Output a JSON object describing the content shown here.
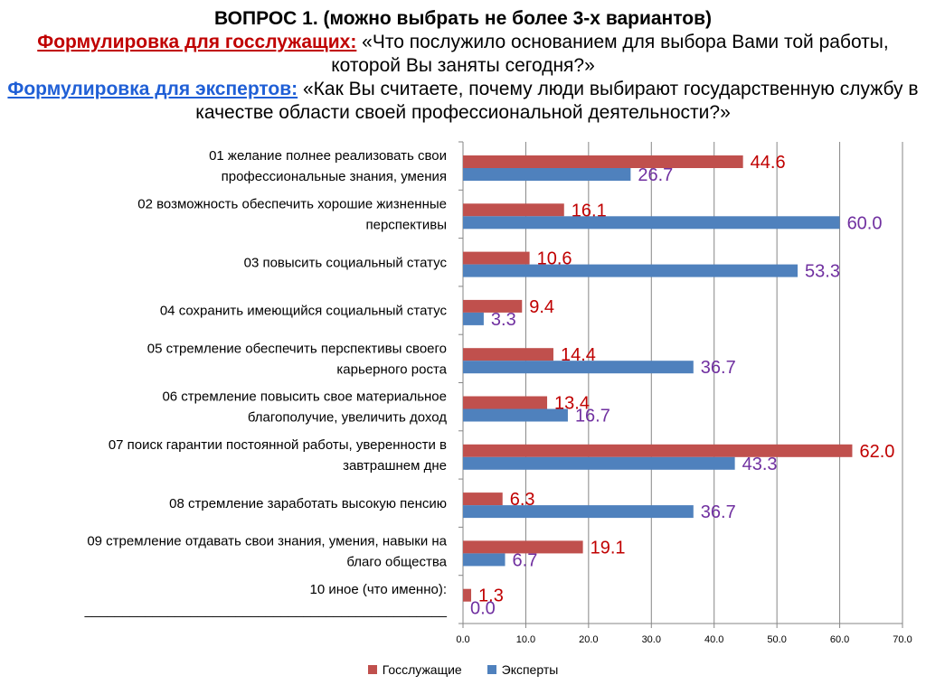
{
  "header": {
    "question": "ВОПРОС 1. (можно выбрать не более 3-х вариантов)",
    "label_civil": "Формулировка для госслужащих:",
    "text_civil": " «Что послужило основанием для выбора Вами той работы, которой Вы заняты сегодня?»",
    "label_expert": "Формулировка для экспертов:",
    "text_expert": " «Как Вы считаете, почему люди выбирают государственную службу в качестве области своей профессиональной деятельности?»"
  },
  "colors": {
    "civil": "#c0504d",
    "expert": "#4f81bd",
    "civil_label": "#c00000",
    "expert_label": "#7030a0"
  },
  "chart_data": {
    "type": "bar",
    "orientation": "horizontal",
    "categories": [
      [
        "01  желание полнее реализовать свои",
        "профессиональные знания, умения"
      ],
      [
        "02  возможность обеспечить хорошие жизненные",
        "перспективы"
      ],
      [
        "03  повысить социальный статус"
      ],
      [
        "04  сохранить имеющийся социальный статус"
      ],
      [
        "05  стремление обеспечить перспективы своего",
        "карьерного роста"
      ],
      [
        "06  стремление повысить свое материальное",
        "благополучие, увеличить доход"
      ],
      [
        "07  поиск гарантии постоянной работы, уверенности в",
        "завтрашнем дне"
      ],
      [
        "08  стремление заработать высокую пенсию"
      ],
      [
        "09  стремление отдавать свои знания, умения, навыки на",
        "благо общества"
      ],
      [
        "10  иное (что именно):",
        "________________________________________________"
      ]
    ],
    "series": [
      {
        "name": "Госслужащие",
        "values": [
          44.6,
          16.1,
          10.6,
          9.4,
          14.4,
          13.4,
          62.0,
          6.3,
          19.1,
          1.3
        ]
      },
      {
        "name": "Эксперты",
        "values": [
          26.7,
          60.0,
          53.3,
          3.3,
          36.7,
          16.7,
          43.3,
          36.7,
          6.7,
          0.0
        ]
      }
    ],
    "xlim": [
      0,
      70
    ],
    "xticks": [
      "0.0",
      "10.0",
      "20.0",
      "30.0",
      "40.0",
      "50.0",
      "60.0",
      "70.0"
    ],
    "grid": true,
    "legend_position": "bottom"
  }
}
